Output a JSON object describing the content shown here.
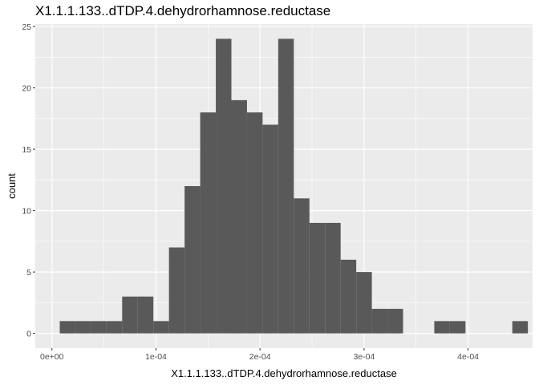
{
  "chart_data": {
    "type": "bar",
    "title": "X1.1.1.133..dTDP.4.dehydrorhamnose.reductase",
    "xlabel": "X1.1.1.133..dTDP.4.dehydrorhamnose.reductase",
    "ylabel": "count",
    "xlim": [
      -1.6e-05,
      0.000462
    ],
    "ylim": [
      -1.2,
      25.2
    ],
    "x_ticks": [
      {
        "value": 0,
        "label": "0e+00"
      },
      {
        "value": 0.0001,
        "label": "1e-04"
      },
      {
        "value": 0.0002,
        "label": "2e-04"
      },
      {
        "value": 0.0003,
        "label": "3e-04"
      },
      {
        "value": 0.0004,
        "label": "4e-04"
      }
    ],
    "y_ticks": [
      {
        "value": 0,
        "label": "0"
      },
      {
        "value": 5,
        "label": "5"
      },
      {
        "value": 10,
        "label": "10"
      },
      {
        "value": 15,
        "label": "15"
      },
      {
        "value": 20,
        "label": "20"
      },
      {
        "value": 25,
        "label": "25"
      }
    ],
    "bin_width": 1.5e-05,
    "bin_starts": [
      7.5e-06,
      2.25e-05,
      3.75e-05,
      5.25e-05,
      6.75e-05,
      8.25e-05,
      9.75e-05,
      0.0001125,
      0.0001275,
      0.0001425,
      0.0001575,
      0.0001725,
      0.0001875,
      0.0002025,
      0.0002175,
      0.0002325,
      0.0002475,
      0.0002625,
      0.0002775,
      0.0002925,
      0.0003075,
      0.0003225,
      0.0003375,
      0.0003525,
      0.0003675,
      0.0003825,
      0.0003975,
      0.0004125,
      0.0004275,
      0.0004425
    ],
    "values": [
      1,
      1,
      1,
      1,
      3,
      3,
      1,
      7,
      12,
      18,
      24,
      19,
      18,
      17,
      24,
      11,
      9,
      9,
      6,
      5,
      2,
      2,
      0,
      0,
      1,
      1,
      0,
      0,
      0,
      1
    ],
    "grid": true,
    "colors": {
      "panel": "#ebebeb",
      "grid_major": "#ffffff",
      "bar": "#595959"
    }
  }
}
